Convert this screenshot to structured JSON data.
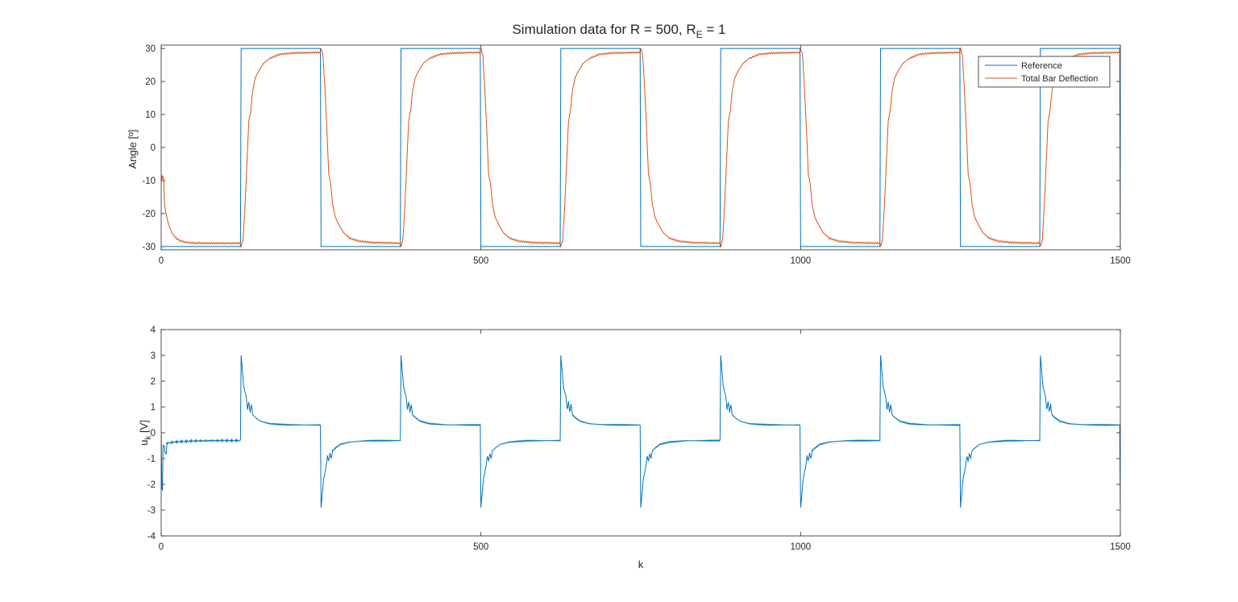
{
  "figure": {
    "title_main": "Simulation data for R = 500, R",
    "title_sub": "E",
    "title_tail": " = 1"
  },
  "colors": {
    "reference": "#0072BD",
    "deflection": "#D95319",
    "axes": "#262626"
  },
  "chart_data": [
    {
      "type": "line",
      "ylabel": "Angle [º]",
      "xlabel": "",
      "xlim": [
        0,
        1500
      ],
      "ylim": [
        -31,
        31
      ],
      "xticks": [
        "0",
        "500",
        "1000",
        "1500"
      ],
      "yticks": [
        "-30",
        "-20",
        "-10",
        "0",
        "10",
        "20",
        "30"
      ],
      "legend": {
        "placement": "top-right"
      },
      "period": 250,
      "high_start": 125,
      "series": [
        {
          "name": "Reference",
          "color": "#0072BD",
          "description": "square wave",
          "low": -30,
          "high": 30
        },
        {
          "name": "Total Bar Deflection",
          "color": "#D95319",
          "start_value": -8,
          "steady_low": -29,
          "steady_high": 28.7,
          "rise_response": [
            [
              0,
              -30
            ],
            [
              3,
              -28
            ],
            [
              6,
              -18
            ],
            [
              9,
              -5
            ],
            [
              12,
              8
            ],
            [
              15,
              11
            ],
            [
              18,
              17
            ],
            [
              22,
              21
            ],
            [
              27,
              23
            ],
            [
              35,
              25.5
            ],
            [
              45,
              27
            ],
            [
              60,
              28.2
            ],
            [
              80,
              28.6
            ],
            [
              125,
              28.8
            ]
          ],
          "fall_response": [
            [
              0,
              30
            ],
            [
              3,
              28
            ],
            [
              6,
              18
            ],
            [
              9,
              6
            ],
            [
              12,
              -8
            ],
            [
              15,
              -11
            ],
            [
              18,
              -17
            ],
            [
              22,
              -21
            ],
            [
              27,
              -23
            ],
            [
              35,
              -25.8
            ],
            [
              45,
              -27.5
            ],
            [
              60,
              -28.4
            ],
            [
              80,
              -28.8
            ],
            [
              125,
              -29
            ]
          ]
        }
      ]
    },
    {
      "type": "line",
      "ylabel": "u",
      "ylabel_sub": "k",
      "ylabel_tail": " [V]",
      "xlabel": "k",
      "xlim": [
        0,
        1500
      ],
      "ylim": [
        -4,
        4
      ],
      "xticks": [
        "0",
        "500",
        "1000",
        "1500"
      ],
      "yticks": [
        "-4",
        "-3",
        "-2",
        "-1",
        "0",
        "1",
        "2",
        "3",
        "4"
      ],
      "series": [
        {
          "name": "",
          "color": "#0072BD",
          "steady_low": -0.3,
          "steady_high": 0.3,
          "initial_dip": -2.2,
          "rise_response": [
            [
              0,
              3
            ],
            [
              4,
              1.8
            ],
            [
              8,
              1.4
            ],
            [
              10,
              0.9
            ],
            [
              12,
              1.2
            ],
            [
              14,
              0.8
            ],
            [
              16,
              1.1
            ],
            [
              18,
              0.7
            ],
            [
              22,
              0.6
            ],
            [
              30,
              0.45
            ],
            [
              45,
              0.35
            ],
            [
              70,
              0.31
            ],
            [
              125,
              0.3
            ]
          ],
          "fall_response": [
            [
              0,
              -2.9
            ],
            [
              4,
              -1.8
            ],
            [
              8,
              -1.3
            ],
            [
              10,
              -0.9
            ],
            [
              12,
              -1.1
            ],
            [
              14,
              -0.8
            ],
            [
              16,
              -1.0
            ],
            [
              18,
              -0.7
            ],
            [
              22,
              -0.6
            ],
            [
              30,
              -0.45
            ],
            [
              45,
              -0.36
            ],
            [
              70,
              -0.31
            ],
            [
              125,
              -0.3
            ]
          ]
        }
      ]
    }
  ]
}
